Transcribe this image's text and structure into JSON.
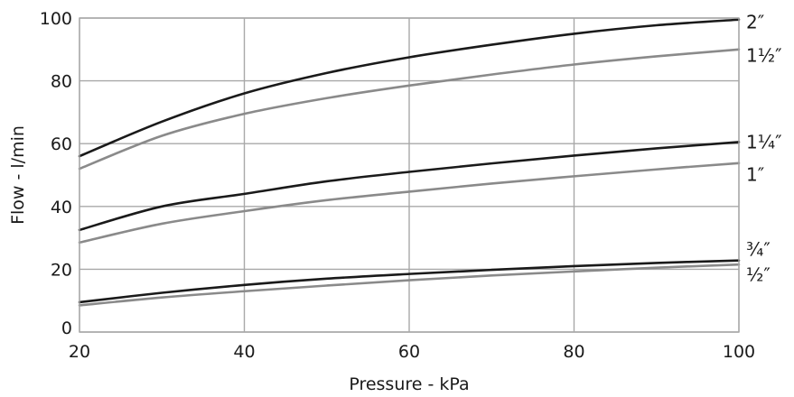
{
  "chart_data": {
    "type": "line",
    "title": "",
    "xlabel": "Pressure - kPa",
    "ylabel": "Flow - l/min",
    "xlim": [
      20,
      100
    ],
    "ylim": [
      0,
      100
    ],
    "x_ticks": [
      "20",
      "40",
      "60",
      "80",
      "100"
    ],
    "y_ticks": [
      "0",
      "20",
      "40",
      "60",
      "80",
      "100"
    ],
    "grid": true,
    "legend": "series labels at right end of lines",
    "colors": {
      "dark": "#1a1a1a",
      "light": "#8a8a8a",
      "grid": "#a8a8a8"
    },
    "series": [
      {
        "name": "2″",
        "shade": "dark",
        "x": [
          20,
          30,
          40,
          50,
          60,
          70,
          80,
          90,
          100
        ],
        "y": [
          56,
          67,
          76,
          82.5,
          87.5,
          91.5,
          95,
          97.7,
          99.5
        ]
      },
      {
        "name": "1½″",
        "shade": "light",
        "x": [
          20,
          30,
          40,
          50,
          60,
          70,
          80,
          90,
          100
        ],
        "y": [
          52,
          62.5,
          69.5,
          74.5,
          78.5,
          82,
          85.2,
          87.8,
          90
        ]
      },
      {
        "name": "1¼″",
        "shade": "dark",
        "x": [
          20,
          30,
          40,
          50,
          60,
          70,
          80,
          90,
          100
        ],
        "y": [
          32.5,
          40,
          44,
          48,
          51,
          53.7,
          56.2,
          58.5,
          60.5
        ]
      },
      {
        "name": "1″",
        "shade": "light",
        "x": [
          20,
          30,
          40,
          50,
          60,
          70,
          80,
          90,
          100
        ],
        "y": [
          28.5,
          34.5,
          38.5,
          42,
          44.7,
          47.3,
          49.6,
          51.8,
          53.8
        ]
      },
      {
        "name": "¾″",
        "shade": "dark",
        "x": [
          20,
          30,
          40,
          50,
          60,
          70,
          80,
          90,
          100
        ],
        "y": [
          9.5,
          12.5,
          15,
          17,
          18.5,
          19.8,
          21,
          22,
          22.8
        ]
      },
      {
        "name": "½″",
        "shade": "light",
        "x": [
          20,
          30,
          40,
          50,
          60,
          70,
          80,
          90,
          100
        ],
        "y": [
          8.5,
          11,
          13,
          14.8,
          16.5,
          18,
          19.3,
          20.5,
          21.5
        ]
      }
    ]
  }
}
